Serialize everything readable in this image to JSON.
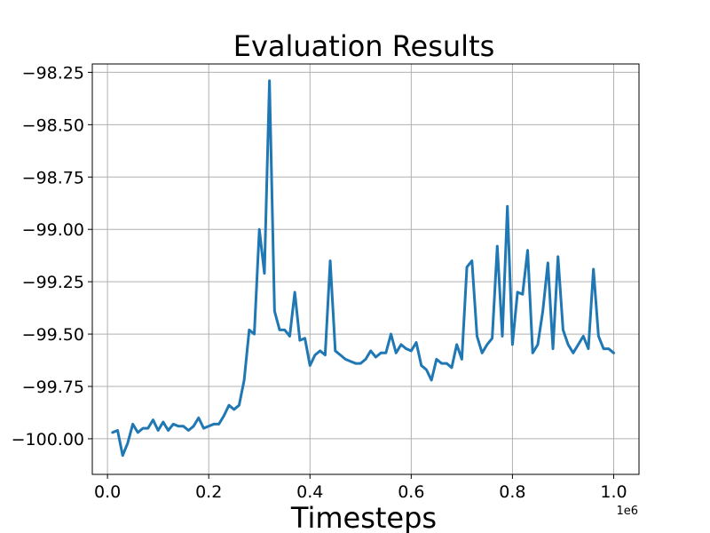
{
  "chart_data": {
    "type": "line",
    "title": "Evaluation Results",
    "xlabel": "Timesteps",
    "ylabel": "",
    "x_offset_label": "1e6",
    "xlim": [
      -0.03,
      1.05
    ],
    "ylim": [
      -100.17,
      -98.21
    ],
    "grid": true,
    "line_color": "#1f77b4",
    "xticks": [
      {
        "value": 0.0,
        "label": "0.0"
      },
      {
        "value": 0.2,
        "label": "0.2"
      },
      {
        "value": 0.4,
        "label": "0.4"
      },
      {
        "value": 0.6,
        "label": "0.6"
      },
      {
        "value": 0.8,
        "label": "0.8"
      },
      {
        "value": 1.0,
        "label": "1.0"
      }
    ],
    "yticks": [
      {
        "value": -98.25,
        "label": "−98.25"
      },
      {
        "value": -98.5,
        "label": "−98.50"
      },
      {
        "value": -98.75,
        "label": "−98.75"
      },
      {
        "value": -99.0,
        "label": "−99.00"
      },
      {
        "value": -99.25,
        "label": "−99.25"
      },
      {
        "value": -99.5,
        "label": "−99.50"
      },
      {
        "value": -99.75,
        "label": "−99.75"
      },
      {
        "value": -100.0,
        "label": "−100.00"
      }
    ],
    "series": [
      {
        "x": [
          0.01,
          0.02,
          0.03,
          0.04,
          0.05,
          0.06,
          0.07,
          0.08,
          0.09,
          0.1,
          0.11,
          0.12,
          0.13,
          0.14,
          0.15,
          0.16,
          0.17,
          0.18,
          0.19,
          0.2,
          0.21,
          0.22,
          0.23,
          0.24,
          0.25,
          0.26,
          0.27,
          0.28,
          0.29,
          0.3,
          0.31,
          0.32,
          0.33,
          0.34,
          0.35,
          0.36,
          0.37,
          0.38,
          0.39,
          0.4,
          0.41,
          0.42,
          0.43,
          0.44,
          0.45,
          0.46,
          0.47,
          0.48,
          0.49,
          0.5,
          0.51,
          0.52,
          0.53,
          0.54,
          0.55,
          0.56,
          0.57,
          0.58,
          0.59,
          0.6,
          0.61,
          0.62,
          0.63,
          0.64,
          0.65,
          0.66,
          0.67,
          0.68,
          0.69,
          0.7,
          0.71,
          0.72,
          0.73,
          0.74,
          0.75,
          0.76,
          0.77,
          0.78,
          0.79,
          0.8,
          0.81,
          0.82,
          0.83,
          0.84,
          0.85,
          0.86,
          0.87,
          0.88,
          0.89,
          0.9,
          0.91,
          0.92,
          0.93,
          0.94,
          0.95,
          0.96,
          0.97,
          0.98,
          0.99,
          1.0
        ],
        "y": [
          -99.97,
          -99.96,
          -100.08,
          -100.02,
          -99.93,
          -99.97,
          -99.95,
          -99.95,
          -99.91,
          -99.96,
          -99.92,
          -99.96,
          -99.93,
          -99.94,
          -99.94,
          -99.96,
          -99.94,
          -99.9,
          -99.95,
          -99.94,
          -99.93,
          -99.93,
          -99.89,
          -99.84,
          -99.86,
          -99.84,
          -99.72,
          -99.48,
          -99.5,
          -99.0,
          -99.21,
          -98.29,
          -99.39,
          -99.48,
          -99.48,
          -99.51,
          -99.3,
          -99.53,
          -99.52,
          -99.65,
          -99.6,
          -99.58,
          -99.6,
          -99.15,
          -99.58,
          -99.6,
          -99.62,
          -99.63,
          -99.64,
          -99.64,
          -99.62,
          -99.58,
          -99.61,
          -99.59,
          -99.59,
          -99.5,
          -99.59,
          -99.55,
          -99.57,
          -99.58,
          -99.54,
          -99.65,
          -99.67,
          -99.72,
          -99.62,
          -99.64,
          -99.64,
          -99.66,
          -99.55,
          -99.62,
          -99.18,
          -99.15,
          -99.51,
          -99.59,
          -99.55,
          -99.52,
          -99.08,
          -99.51,
          -98.89,
          -99.55,
          -99.3,
          -99.31,
          -99.1,
          -99.59,
          -99.55,
          -99.39,
          -99.16,
          -99.57,
          -99.13,
          -99.48,
          -99.55,
          -99.59,
          -99.55,
          -99.51,
          -99.57,
          -99.19,
          -99.51,
          -99.57,
          -99.57,
          -99.59
        ]
      }
    ]
  }
}
